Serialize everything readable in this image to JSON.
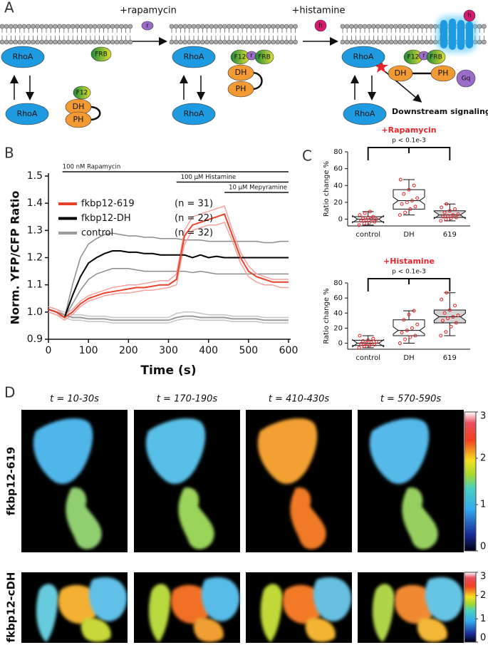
{
  "panel_labels": [
    "A",
    "B",
    "C",
    "D"
  ],
  "diagram": {
    "steps": [
      "+rapamycin",
      "+histamine"
    ],
    "nodes": [
      "RhoA",
      "RhoA",
      "FRB",
      "F12",
      "DH",
      "PH",
      "r",
      "RhoA",
      "RhoA",
      "F12",
      "r",
      "FRB",
      "DH",
      "PH",
      "h",
      "RhoA",
      "RhoA",
      "F12",
      "r",
      "FRB",
      "DH",
      "PH",
      "Gq",
      "h"
    ],
    "outcome": "Downstream signaling"
  },
  "chart_data": [
    {
      "type": "line",
      "x_label": "Time (s)",
      "y_label": "Norm. YFP/CFP Ratio",
      "x": [
        0,
        20,
        40,
        60,
        80,
        100,
        120,
        140,
        160,
        180,
        200,
        220,
        240,
        260,
        280,
        300,
        320,
        340,
        360,
        380,
        400,
        420,
        440,
        460,
        480,
        500,
        520,
        540,
        560,
        580,
        600
      ],
      "series": [
        {
          "name": "fkbp12-619",
          "n_label": "(n = 31)",
          "color": "#e8422a",
          "band_color": "#f4a3a0",
          "values": [
            1.01,
            1.0,
            0.98,
            1.0,
            1.03,
            1.05,
            1.06,
            1.07,
            1.075,
            1.08,
            1.085,
            1.09,
            1.09,
            1.095,
            1.1,
            1.1,
            1.12,
            1.28,
            1.32,
            1.33,
            1.34,
            1.35,
            1.36,
            1.28,
            1.2,
            1.15,
            1.13,
            1.12,
            1.11,
            1.11,
            1.11
          ],
          "upper": [
            1.02,
            1.01,
            0.99,
            1.01,
            1.04,
            1.06,
            1.07,
            1.08,
            1.09,
            1.095,
            1.1,
            1.1,
            1.105,
            1.11,
            1.115,
            1.115,
            1.14,
            1.3,
            1.35,
            1.36,
            1.37,
            1.38,
            1.39,
            1.3,
            1.22,
            1.17,
            1.14,
            1.13,
            1.12,
            1.12,
            1.12
          ],
          "lower": [
            1.0,
            0.99,
            0.97,
            0.99,
            1.02,
            1.04,
            1.05,
            1.06,
            1.065,
            1.07,
            1.07,
            1.075,
            1.08,
            1.08,
            1.085,
            1.09,
            1.1,
            1.25,
            1.3,
            1.31,
            1.32,
            1.32,
            1.33,
            1.26,
            1.18,
            1.13,
            1.11,
            1.1,
            1.1,
            1.09,
            1.09
          ]
        },
        {
          "name": "fkbp12-DH",
          "n_label": "(n = 22)",
          "color": "#000000",
          "band_color": "#8c8c8c",
          "values": [
            1.01,
            1.0,
            0.98,
            1.06,
            1.13,
            1.18,
            1.2,
            1.215,
            1.225,
            1.225,
            1.22,
            1.22,
            1.215,
            1.215,
            1.21,
            1.21,
            1.21,
            1.21,
            1.2,
            1.21,
            1.2,
            1.205,
            1.2,
            1.2,
            1.2,
            1.2,
            1.2,
            1.2,
            1.2,
            1.2,
            1.2
          ],
          "upper": [
            1.01,
            1.0,
            0.98,
            1.1,
            1.2,
            1.25,
            1.27,
            1.285,
            1.29,
            1.285,
            1.28,
            1.28,
            1.275,
            1.275,
            1.27,
            1.27,
            1.27,
            1.265,
            1.265,
            1.265,
            1.26,
            1.26,
            1.26,
            1.26,
            1.26,
            1.26,
            1.26,
            1.255,
            1.255,
            1.26,
            1.26
          ],
          "lower": [
            1.01,
            1.0,
            0.98,
            1.03,
            1.08,
            1.12,
            1.14,
            1.15,
            1.16,
            1.16,
            1.16,
            1.155,
            1.15,
            1.15,
            1.15,
            1.15,
            1.15,
            1.15,
            1.145,
            1.15,
            1.145,
            1.14,
            1.14,
            1.14,
            1.14,
            1.14,
            1.14,
            1.14,
            1.14,
            1.14,
            1.14
          ]
        },
        {
          "name": "control",
          "n_label": "(n = 32)",
          "color": "#9a9a9a",
          "band_color": "#c4c4c4",
          "values": [
            1.01,
            1.0,
            0.99,
            0.98,
            0.98,
            0.975,
            0.975,
            0.975,
            0.97,
            0.97,
            0.97,
            0.97,
            0.97,
            0.97,
            0.97,
            0.97,
            0.98,
            0.985,
            0.985,
            0.98,
            0.98,
            0.98,
            0.98,
            0.975,
            0.975,
            0.975,
            0.975,
            0.97,
            0.97,
            0.97,
            0.97
          ],
          "upper": [
            1.02,
            1.01,
            1.0,
            0.99,
            0.99,
            0.985,
            0.985,
            0.985,
            0.98,
            0.98,
            0.98,
            0.98,
            0.98,
            0.98,
            0.98,
            0.98,
            0.995,
            1.0,
            1.0,
            0.995,
            0.99,
            0.99,
            0.99,
            0.985,
            0.985,
            0.985,
            0.985,
            0.98,
            0.98,
            0.98,
            0.98
          ],
          "lower": [
            1.0,
            0.99,
            0.98,
            0.97,
            0.97,
            0.965,
            0.965,
            0.965,
            0.96,
            0.96,
            0.96,
            0.96,
            0.96,
            0.96,
            0.96,
            0.96,
            0.97,
            0.975,
            0.975,
            0.97,
            0.97,
            0.97,
            0.97,
            0.965,
            0.965,
            0.965,
            0.965,
            0.96,
            0.96,
            0.96,
            0.96
          ]
        }
      ],
      "treatments": [
        {
          "text": "100 nM Rapamycin",
          "start": 35,
          "end": 600
        },
        {
          "text": "100 µM Histamine",
          "start": 320,
          "end": 600
        },
        {
          "text": "10 µM Mepyramine",
          "start": 440,
          "end": 600
        }
      ],
      "xlim": [
        0,
        600
      ],
      "xticks": [
        0,
        100,
        200,
        300,
        400,
        500,
        600
      ],
      "ylim": [
        0.9,
        1.5
      ],
      "yticks": [
        0.9,
        {
          "value": 1,
          "label": "1.0"
        },
        1.1,
        1.2,
        1.3,
        1.4,
        1.5
      ]
    },
    {
      "type": "box",
      "title": "+Rapamycin",
      "title_color": "#e8232a",
      "subtitle": "p < 0.1e-3",
      "y_label": "Ratio change %",
      "categories": [
        "control",
        "DH",
        "619"
      ],
      "point_color": "#e8232a",
      "boxes": [
        {
          "min": -7,
          "q1": -3,
          "median": 0,
          "q3": 3,
          "max": 9,
          "fill": "#f2f2f2",
          "points": [
            -7,
            -5,
            -4,
            -3,
            -2,
            -1,
            0,
            0,
            1,
            2,
            3,
            5,
            7,
            9
          ]
        },
        {
          "min": 5,
          "q1": 12,
          "median": 22,
          "q3": 35,
          "max": 47,
          "fill": "#ffffff",
          "points": [
            5,
            8,
            12,
            15,
            18,
            20,
            22,
            25,
            30,
            35,
            40,
            47
          ]
        },
        {
          "min": -2,
          "q1": 2,
          "median": 5,
          "q3": 10,
          "max": 18,
          "fill": "#d4d4d4",
          "points": [
            -2,
            0,
            1,
            2,
            3,
            4,
            5,
            6,
            8,
            10,
            12,
            14,
            18
          ]
        }
      ],
      "ylim": [
        -8,
        80
      ],
      "yticks": [
        0,
        20,
        40,
        60,
        80
      ]
    },
    {
      "type": "box",
      "title": "+Histamine",
      "title_color": "#e8232a",
      "subtitle": "p < 0.1e-3",
      "y_label": "Ratio change %",
      "categories": [
        "control",
        "DH",
        "619"
      ],
      "point_color": "#e8232a",
      "boxes": [
        {
          "min": -6,
          "q1": -3,
          "median": 0,
          "q3": 4,
          "max": 10,
          "fill": "#f2f2f2",
          "points": [
            -6,
            -4,
            -3,
            -2,
            -1,
            0,
            1,
            2,
            3,
            4,
            6,
            10
          ]
        },
        {
          "min": 0,
          "q1": 10,
          "median": 17,
          "q3": 31,
          "max": 43,
          "fill": "#ffffff",
          "points": [
            0,
            5,
            8,
            10,
            14,
            17,
            20,
            25,
            31,
            38,
            43
          ]
        },
        {
          "min": 10,
          "q1": 27,
          "median": 35,
          "q3": 44,
          "max": 67,
          "fill": "#d4d4d4",
          "points": [
            10,
            15,
            22,
            27,
            30,
            33,
            35,
            37,
            40,
            44,
            50,
            58,
            67
          ]
        }
      ],
      "ylim": [
        -8,
        80
      ],
      "yticks": [
        0,
        20,
        40,
        60,
        80
      ]
    }
  ],
  "images": {
    "times": [
      "t = 10-30s",
      "t = 170-190s",
      "t = 410-430s",
      "t = 570-590s"
    ],
    "rows": [
      "fkbp12-619",
      "fkbp12-cDH"
    ],
    "colorbar": {
      "lim": [
        0,
        3
      ],
      "ticks": [
        0,
        1,
        2,
        3
      ]
    }
  }
}
